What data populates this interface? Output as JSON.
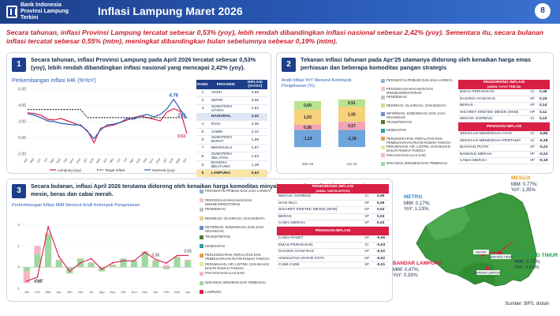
{
  "header": {
    "logo_line1": "Bank Indonesia",
    "logo_line2": "Provinsi Lampung",
    "logo_line3": "Terkini",
    "title": "Inflasi Lampung Maret 2026",
    "page_number": "8"
  },
  "summary": "Secara tahunan, inflasi Provinsi Lampung tercatat sebesar 0,53% (yoy), lebih rendah dibandingkan inflasi nasional sebesar 2,42% (yoy). Sementara itu, secara bulanan inflasi tercatat sebesar 0,55% (mtm), meningkat dibandingkan bulan sebelumnya sebesar 0,19% (mtm).",
  "panel1": {
    "number": "1",
    "title": "Secara tahunan, inflasi Provinsi Lampung pada April 2026 tercatat sebesar 0,53% (yoy), lebih rendah dibandingkan inflasi nasional yang mencapai 2,42% (yoy).",
    "chart_title": "Perkembangan Inflasi IHK (%YoY)",
    "table_headers": [
      "RANK",
      "PROVINSI",
      "INFLASI (%YOY)"
    ],
    "table_rows": [
      {
        "rank": "1",
        "prov": "ACEH",
        "val": "3,88"
      },
      {
        "rank": "2",
        "prov": "KEPRI",
        "val": "3,06"
      },
      {
        "rank": "3",
        "prov": "SUMATERA UTARA",
        "val": "2,92"
      },
      {
        "rank": "",
        "prov": "NASIONAL",
        "val": "2,42"
      },
      {
        "rank": "4",
        "prov": "RIAU",
        "val": "2,36"
      },
      {
        "rank": "5",
        "prov": "JAMBI",
        "val": "2,10"
      },
      {
        "rank": "6",
        "prov": "SUMATERA BARAT",
        "val": "1,98"
      },
      {
        "rank": "7",
        "prov": "BENGKULU",
        "val": "1,67"
      },
      {
        "rank": "8",
        "prov": "SUMATERA SELATAN",
        "val": "1,63"
      },
      {
        "rank": "8",
        "prov": "BANGKA BELITUNG",
        "val": "1,49"
      },
      {
        "rank": "9",
        "prov": "LAMPUNG",
        "val": "0,53"
      }
    ]
  },
  "panel2": {
    "number": "2",
    "title": "Tekanan inflasi tahunan pada Apr'25 utamanya didorong oleh kenaikan harga emas perhiasan dan beberapa komoditas pangan strategis",
    "chart_title": "Andil Inflasi YoY Menurut Kelompok Pengeluaran (%)",
    "legend": [
      "PERAWATAN PRIBADI DAN JASA LAINNYA",
      "PENYEDIAAN MAKANAN DAN MINUMAN/RESTORAN",
      "PENDIDIKAN",
      "REKREASI, OLAHRAGA, DAN BUDAYA",
      "INFORMASI, KOMUNIKASI, DAN JASA KEUANGAN",
      "TRANSPORTASI",
      "KESEHATAN",
      "PERLENGKAPAN, PERALATAN DAN PEMELIHARAAN RUTIN RUMAH TANGGA",
      "PERUMAHAN, AIR, LISTRIK, DAN BAHAN BAKAR RUMAH TANGGA",
      "PAKAIAN DAN ALAS KAKI",
      "MAKANAN, MINUMAN DAN TEMBAKAU"
    ],
    "driver_header": "PENDORONG INFLASI",
    "driver_sub": "(ANDIL %YOY FEB'26)",
    "drivers": [
      {
        "name": "EMAS PERHIASAN",
        "code": "CI",
        "val": "0,45"
      },
      {
        "name": "DAGING AYAM RAS",
        "code": "VF",
        "val": "0,24"
      },
      {
        "name": "BERAS",
        "code": "VF",
        "val": "0,14"
      },
      {
        "name": "SIGARET KRETEK MESIN (SKM)",
        "code": "AP",
        "val": "0,11"
      },
      {
        "name": "MINYAK GORENG",
        "code": "CI",
        "val": "0,10"
      }
    ],
    "inhibitor_header": "PENAHAN INFLASI",
    "inhibitors": [
      {
        "name": "SEKOLAH MENENGAH ATAS",
        "code": "CI",
        "val": "-0,85"
      },
      {
        "name": "SEKOLAH MENENGAH PERTAMA",
        "code": "CI",
        "val": "-0,38"
      },
      {
        "name": "BUAHAN PUTIH",
        "code": "VF",
        "val": "-0,23"
      },
      {
        "name": "BAWANG MERAH",
        "code": "VF",
        "val": "-0,23"
      },
      {
        "name": "CABAI MERAH",
        "code": "VF",
        "val": "-0,19"
      }
    ]
  },
  "panel3": {
    "number": "3",
    "title": "Secara bulanan, inflasi April 2026 terutama didorong oleh kenaikan harga komoditas minyak goreng, ikan nila, sigeret kretek mesin, beras dan cabai merah.",
    "chart_title": "Perkembangan Inflasi MtM Menurut Andil Kelompok Pengeluaran",
    "legend": [
      "PERAWATAN PRIBADI DAN JASA LAINNYA",
      "PENYEDIAAN MAKANAN DAN MINUMAN/RESTORAN",
      "PENDIDIKAN",
      "REKREASI, OLAHRAGA, DAN BUDAYA",
      "INFORMASI, KOMUNIKASI, DAN JASA KEUANGAN",
      "TRANSPORTASI",
      "KESEHATAN",
      "PERLENGKAPAN, PERALATAN DAN PEMELIHARAAN RUTIN RUMAH TANGGA",
      "PERUMAHAN, AIR, LISTRIK, DAN BAHAN BAKAR RUMAH TANGGA",
      "PAKAIAN DAN ALAS KAKI",
      "MAKANAN, MINUMAN DAN TEMBAKAU",
      "LAMPUNG"
    ],
    "driver_header": "PENDORONG INFLASI",
    "driver_sub": "(ANDIL %MTM APR'26)",
    "drivers": [
      {
        "name": "MINYAK GORENG",
        "code": "CI",
        "val": "0,09"
      },
      {
        "name": "IKAN NILA",
        "code": "VF",
        "val": "0,09"
      },
      {
        "name": "SIGARET KRETEK MESIN (SKM)",
        "code": "AP",
        "val": "0,03"
      },
      {
        "name": "BERAS",
        "code": "VF",
        "val": "0,03"
      },
      {
        "name": "CABAI MERAH",
        "code": "VF",
        "val": "0,03"
      }
    ],
    "inhibitor_header": "PENAHAN INFLASI",
    "inhibitors": [
      {
        "name": "CABAI RAWIT",
        "code": "VF",
        "val": "-0,06"
      },
      {
        "name": "EMAS PERHIASAN",
        "code": "CI",
        "val": "-0,03"
      },
      {
        "name": "DAGING AYAM RAS",
        "code": "VF",
        "val": "-0,02"
      },
      {
        "name": "ANGKUTAN ANTAR KOTA",
        "code": "AP",
        "val": "-0,02"
      },
      {
        "name": "CUMI-CUMI",
        "code": "VF",
        "val": "-0,01"
      }
    ]
  },
  "map": {
    "cities": [
      {
        "name": "MESUJI",
        "l1": "MtM: 0,77%;",
        "l2": "YoY: 1,35%"
      },
      {
        "name": "METRO",
        "l1": "MtM: 0,17%;",
        "l2": "YoY: 1,13%;"
      },
      {
        "name": "LAMPUNG TIMUR",
        "l1": "MtM: 0,75%;",
        "l2": "YoY: 0,61%;"
      },
      {
        "name": "BANDAR LAMPUNG",
        "l1": "MtM: 0,47%;",
        "l2": "YoY: 0,33%;"
      }
    ],
    "pin_labels": [
      "METRO",
      "LAMPUNG TIMUR",
      "BANDAR LAMPUNG"
    ]
  },
  "source": "Sumber: BPS, diolah",
  "colors": {
    "primary": "#1d3f8a",
    "accent_red": "#d81f44",
    "map_green": "#3c9a3e"
  },
  "chart_data": [
    {
      "type": "line",
      "title": "Perkembangan Inflasi IHK (%YoY)",
      "ylim": [
        -2.0,
        6.0
      ],
      "yticks": [
        "6.00",
        "4.00",
        "2.00",
        "0.00",
        "-2.00"
      ],
      "x": [
        "Apr",
        "Mei",
        "Jun",
        "Jul",
        "Agu",
        "Sep",
        "Okt",
        "Nov",
        "Des",
        "Jan",
        "Feb",
        "Mar",
        "Apr",
        "Mei",
        "Jun",
        "Jul",
        "Agu",
        "Sep",
        "Okt",
        "Nov",
        "Des",
        "Jan",
        "Feb",
        "Mar",
        "Apr"
      ],
      "series": [
        {
          "name": "Lampung (yoy)",
          "values": [
            3.1,
            3.0,
            2.8,
            2.3,
            2.2,
            2.4,
            2.1,
            1.8,
            1.5,
            0.9,
            -0.6,
            1.2,
            1.4,
            1.6,
            1.9,
            2.2,
            2.5,
            2.7,
            2.5,
            2.3,
            2.1,
            3.2,
            3.6,
            3.3,
            0.53
          ]
        },
        {
          "name": "Target Inflasi",
          "values": [
            3.5,
            3.5,
            3.5,
            3.5,
            3.5,
            3.5,
            3.5,
            3.5,
            3.5,
            2.5,
            2.5,
            2.5,
            2.5,
            2.5,
            2.5,
            2.5,
            2.5,
            2.5,
            2.5,
            2.5,
            2.5,
            2.5,
            2.5,
            2.5,
            2.5
          ]
        },
        {
          "name": "Nasional (yoy)",
          "values": [
            3.0,
            2.8,
            2.5,
            2.1,
            2.0,
            1.8,
            1.7,
            1.6,
            1.6,
            0.8,
            -0.1,
            1.0,
            1.6,
            1.7,
            1.9,
            2.4,
            2.3,
            2.7,
            2.9,
            2.6,
            2.9,
            3.6,
            4.76,
            3.5,
            2.42
          ]
        }
      ],
      "annotations": [
        "4.76",
        "2.42",
        "0.53"
      ]
    },
    {
      "type": "bar",
      "title": "Andil Inflasi YoY Menurut Kelompok Pengeluaran (%)",
      "categories": [
        "Mar-26",
        "Apr-26"
      ],
      "ylim": [
        -2,
        2.5
      ],
      "stack_labels": [
        {
          "values": [
            "0,60",
            "1,03",
            "0,38",
            "-1,19"
          ]
        },
        {
          "values": [
            "0,51",
            "1,05",
            "0,57",
            "-1,18"
          ]
        }
      ],
      "series": [
        {
          "name": "PERAWATAN PRIBADI DAN JASA LAINNYA",
          "values": [
            0.6,
            0.51
          ]
        },
        {
          "name": "MAKANAN, MINUMAN DAN TEMBAKAU",
          "values": [
            1.03,
            1.05
          ]
        },
        {
          "name": "PERUMAHAN, AIR, LISTRIK, DAN BAHAN BAKAR RUMAH TANGGA",
          "values": [
            0.38,
            0.57
          ]
        },
        {
          "name": "PENDIDIKAN",
          "values": [
            -1.19,
            -1.18
          ]
        }
      ]
    },
    {
      "type": "bar",
      "title": "Perkembangan Inflasi MtM Menurut Andil Kelompok Pengeluaran",
      "categories": [
        "Jan",
        "Feb",
        "Mar",
        "Apr",
        "Mei",
        "Jun",
        "Jul",
        "Agu",
        "Sep",
        "Okt",
        "Nov",
        "Des",
        "Jan",
        "Feb",
        "Mar",
        "Apr"
      ],
      "ylim": [
        -1.0,
        2.5
      ],
      "series": [
        {
          "name": "MAKANAN, MINUMAN DAN TEMBAKAU",
          "values": [
            -0.2,
            0.6,
            1.5,
            0.3,
            -0.3,
            0.4,
            0.2,
            -0.2,
            0.1,
            0.4,
            0.3,
            0.7,
            0.3,
            -0.1,
            0.45,
            0.3
          ]
        },
        {
          "name": "PERUMAHAN, AIR, LISTRIK, DAN BAHAN BAKAR RUMAH TANGGA",
          "values": [
            -0.55,
            0.4,
            0.1,
            0.05,
            0.0,
            0.02,
            0.03,
            0.0,
            0.02,
            0.02,
            0.01,
            0.05,
            0.02,
            0.1,
            0.05,
            0.05
          ]
        },
        {
          "name": "LAMPUNG",
          "values": [
            -0.66,
            -0.47,
            1.9,
            0.5,
            -0.2,
            0.2,
            0.4,
            -0.1,
            0.2,
            0.3,
            0.3,
            0.7,
            0.36,
            0.19,
            0.55,
            0.55
          ]
        }
      ],
      "annotations": [
        "-0,66",
        "-0,47",
        "0,36",
        "0,55"
      ]
    }
  ]
}
